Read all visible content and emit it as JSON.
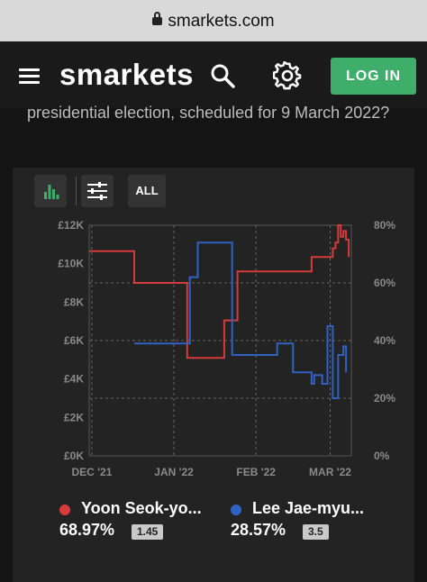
{
  "browser": {
    "url": "smarkets.com"
  },
  "header": {
    "logo": "smarkets",
    "login_label": "LOG IN"
  },
  "market": {
    "question": "presidential election, scheduled for 9 March 2022?"
  },
  "chart_controls": {
    "all_label": "ALL"
  },
  "colors": {
    "yoon": "#d63b3b",
    "lee": "#2f62c4",
    "accent": "#3fae6a"
  },
  "chart_data": {
    "type": "line",
    "title": "",
    "y_left_ticks": [
      "£12K",
      "£10K",
      "£8K",
      "£6K",
      "£4K",
      "£2K",
      "£0K"
    ],
    "y_right_ticks": [
      "80%",
      "60%",
      "40%",
      "20%",
      "0%"
    ],
    "x_ticks": [
      "DEC '21",
      "JAN '22",
      "FEB '22",
      "MAR '22"
    ],
    "ylim_right": [
      0,
      80
    ],
    "series": [
      {
        "name": "Yoon Seok-yo...",
        "color": "#d63b3b",
        "points": [
          [
            "2021-11-30",
            71
          ],
          [
            "2021-12-16",
            71
          ],
          [
            "2021-12-17",
            60
          ],
          [
            "2022-01-05",
            60
          ],
          [
            "2022-01-06",
            34
          ],
          [
            "2022-01-19",
            34
          ],
          [
            "2022-01-20",
            47
          ],
          [
            "2022-01-24",
            47
          ],
          [
            "2022-01-25",
            64
          ],
          [
            "2022-02-21",
            64
          ],
          [
            "2022-02-22",
            69
          ],
          [
            "2022-02-28",
            69
          ],
          [
            "2022-03-01",
            69
          ],
          [
            "2022-03-02",
            72
          ],
          [
            "2022-03-03",
            74
          ],
          [
            "2022-03-04",
            80
          ],
          [
            "2022-03-05",
            76
          ],
          [
            "2022-03-06",
            78
          ],
          [
            "2022-03-07",
            75
          ],
          [
            "2022-03-08",
            69
          ]
        ]
      },
      {
        "name": "Lee Jae-myu...",
        "color": "#2f62c4",
        "points": [
          [
            "2021-12-17",
            39
          ],
          [
            "2022-01-06",
            39
          ],
          [
            "2022-01-07",
            62
          ],
          [
            "2022-01-10",
            74
          ],
          [
            "2022-01-22",
            74
          ],
          [
            "2022-01-23",
            35
          ],
          [
            "2022-02-08",
            35
          ],
          [
            "2022-02-09",
            39
          ],
          [
            "2022-02-14",
            39
          ],
          [
            "2022-02-15",
            29
          ],
          [
            "2022-02-22",
            25
          ],
          [
            "2022-02-23",
            28
          ],
          [
            "2022-02-26",
            25
          ],
          [
            "2022-02-28",
            45
          ],
          [
            "2022-03-01",
            45
          ],
          [
            "2022-03-02",
            20
          ],
          [
            "2022-03-04",
            35
          ],
          [
            "2022-03-06",
            38
          ],
          [
            "2022-03-07",
            29
          ]
        ]
      }
    ]
  },
  "legend": [
    {
      "name": "Yoon Seok-yo...",
      "percent": "68.97%",
      "odds": "1.45"
    },
    {
      "name": "Lee Jae-myu...",
      "percent": "28.57%",
      "odds": "3.5"
    }
  ]
}
